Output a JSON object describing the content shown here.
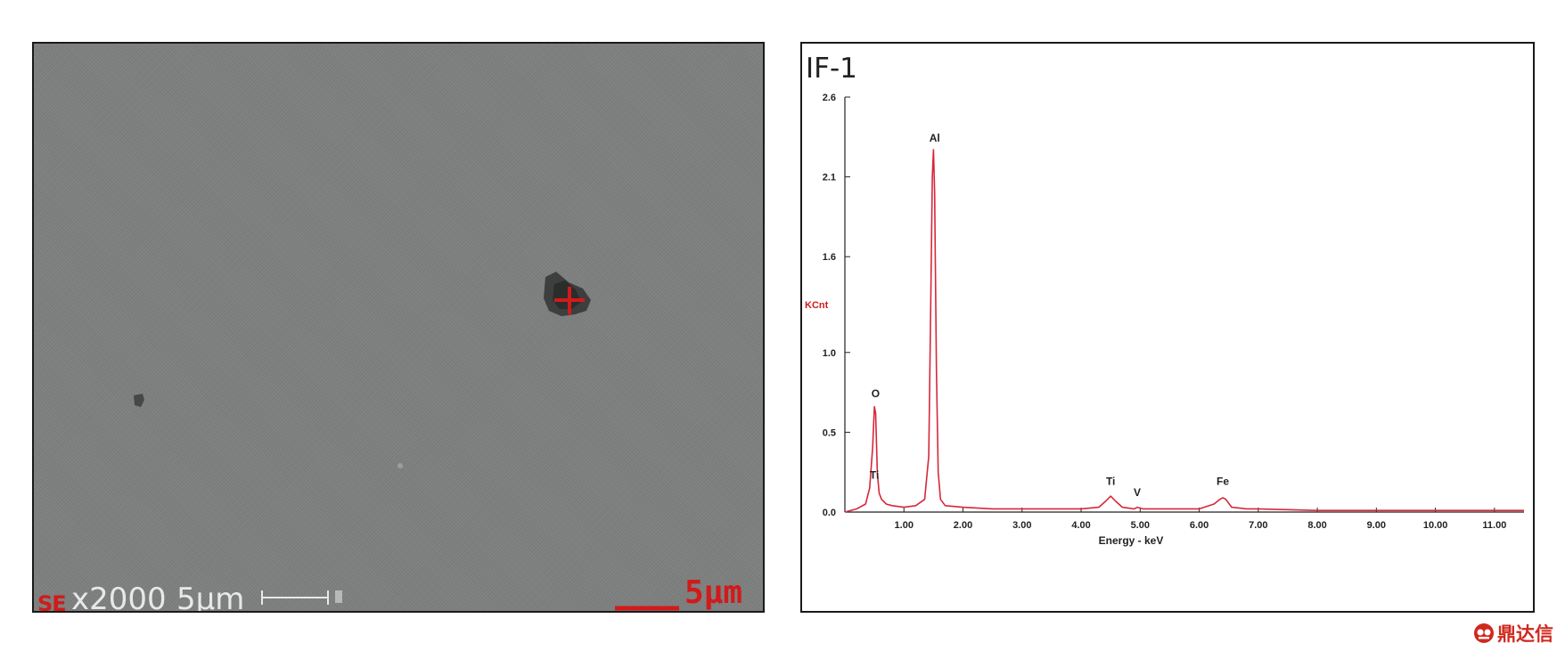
{
  "sem": {
    "mode_label": "SE",
    "magnification": "x2000",
    "scale_label": "5μm",
    "red_scale_label": "5μm",
    "background_color": "#7e8180",
    "marker_color": "#d21a1a"
  },
  "eds": {
    "panel_label": "IF-1"
  },
  "chart_data": {
    "type": "line",
    "title": "",
    "xlabel": "Energy - keV",
    "ylabel": "KCnt",
    "xlim": [
      0,
      11.5
    ],
    "ylim": [
      0,
      2.6
    ],
    "x_ticks": [
      1.0,
      2.0,
      3.0,
      4.0,
      5.0,
      6.0,
      7.0,
      8.0,
      9.0,
      10.0,
      11.0
    ],
    "x_tick_labels": [
      "1.00",
      "2.00",
      "3.00",
      "4.00",
      "5.00",
      "6.00",
      "7.00",
      "8.00",
      "9.00",
      "10.00",
      "11.00"
    ],
    "y_ticks": [
      0.0,
      0.5,
      1.0,
      1.6,
      2.1,
      2.6
    ],
    "y_tick_labels": [
      "0.0",
      "0.5",
      "1.0",
      "1.6",
      "2.1",
      "2.6"
    ],
    "grid": false,
    "series": [
      {
        "color": "#d6283a",
        "x": [
          0.0,
          0.2,
          0.35,
          0.42,
          0.47,
          0.5,
          0.52,
          0.55,
          0.58,
          0.62,
          0.7,
          0.8,
          1.0,
          1.2,
          1.35,
          1.42,
          1.45,
          1.48,
          1.5,
          1.52,
          1.55,
          1.58,
          1.62,
          1.7,
          2.0,
          2.5,
          3.0,
          3.5,
          4.0,
          4.3,
          4.42,
          4.5,
          4.58,
          4.7,
          4.9,
          4.95,
          5.05,
          5.2,
          5.5,
          6.0,
          6.25,
          6.35,
          6.4,
          6.45,
          6.55,
          6.8,
          7.0,
          8.0,
          9.0,
          10.0,
          11.0,
          11.5
        ],
        "y": [
          0.0,
          0.02,
          0.05,
          0.15,
          0.4,
          0.66,
          0.62,
          0.25,
          0.12,
          0.08,
          0.05,
          0.04,
          0.03,
          0.04,
          0.08,
          0.35,
          1.2,
          2.1,
          2.27,
          2.0,
          0.9,
          0.25,
          0.08,
          0.04,
          0.03,
          0.02,
          0.02,
          0.02,
          0.02,
          0.03,
          0.07,
          0.1,
          0.07,
          0.03,
          0.02,
          0.03,
          0.02,
          0.02,
          0.02,
          0.02,
          0.05,
          0.08,
          0.09,
          0.08,
          0.03,
          0.02,
          0.02,
          0.01,
          0.01,
          0.01,
          0.01,
          0.01
        ]
      }
    ],
    "annotations": [
      {
        "text": "O",
        "x": 0.52,
        "y": 0.72
      },
      {
        "text": "Ti",
        "x": 0.5,
        "y": 0.21
      },
      {
        "text": "Al",
        "x": 1.52,
        "y": 2.32
      },
      {
        "text": "Ti",
        "x": 4.5,
        "y": 0.17
      },
      {
        "text": "V",
        "x": 4.95,
        "y": 0.1
      },
      {
        "text": "Fe",
        "x": 6.4,
        "y": 0.17
      }
    ]
  },
  "watermark": {
    "text": "鼎达信"
  }
}
